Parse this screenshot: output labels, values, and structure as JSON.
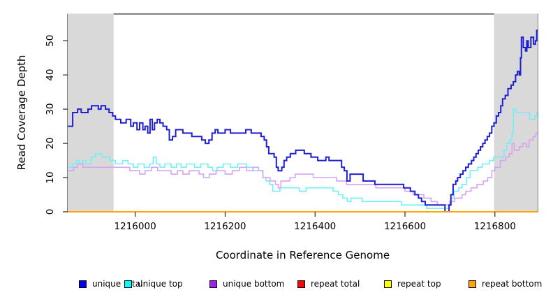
{
  "figure": {
    "background": "#ffffff",
    "plot_border_color": "#000000",
    "tick_color": "#000000",
    "tick_font_px": 13.5
  },
  "chart_data": {
    "type": "line",
    "subtype": "step-coverage",
    "title": "",
    "xlabel": "Coordinate in Reference Genome",
    "ylabel": "Read Coverage Depth",
    "xlim": [
      1215850,
      1216895
    ],
    "ylim": [
      0,
      57.8
    ],
    "x_ticks": [
      1216000,
      1216200,
      1216400,
      1216600,
      1216800
    ],
    "y_ticks": [
      0,
      10,
      20,
      30,
      40,
      50
    ],
    "grid": false,
    "legend_position": "bottom",
    "shaded_regions": [
      {
        "x0": 1215850,
        "x1": 1215952,
        "color": "#d9d9d9"
      },
      {
        "x0": 1216798,
        "x1": 1216895,
        "color": "#d9d9d9"
      }
    ],
    "series": [
      {
        "name": "unique top",
        "line_color": "#70eff5",
        "legend_color": "#00ffff",
        "width": 1.6,
        "points": [
          [
            1215850,
            13
          ],
          [
            1215861,
            14
          ],
          [
            1215868,
            15
          ],
          [
            1215875,
            14
          ],
          [
            1215883,
            15
          ],
          [
            1215890,
            14
          ],
          [
            1215902,
            16
          ],
          [
            1215912,
            17
          ],
          [
            1215926,
            16
          ],
          [
            1215944,
            15
          ],
          [
            1215956,
            14
          ],
          [
            1215972,
            15
          ],
          [
            1215984,
            14
          ],
          [
            1215996,
            13
          ],
          [
            1216006,
            14
          ],
          [
            1216020,
            13
          ],
          [
            1216032,
            14
          ],
          [
            1216040,
            16
          ],
          [
            1216047,
            14
          ],
          [
            1216055,
            13
          ],
          [
            1216066,
            14
          ],
          [
            1216080,
            13
          ],
          [
            1216092,
            14
          ],
          [
            1216102,
            13
          ],
          [
            1216114,
            14
          ],
          [
            1216132,
            13
          ],
          [
            1216146,
            14
          ],
          [
            1216162,
            13
          ],
          [
            1216172,
            12
          ],
          [
            1216182,
            13
          ],
          [
            1216196,
            14
          ],
          [
            1216212,
            13
          ],
          [
            1216228,
            14
          ],
          [
            1216248,
            13
          ],
          [
            1216262,
            12
          ],
          [
            1216284,
            10
          ],
          [
            1216291,
            9
          ],
          [
            1216299,
            8
          ],
          [
            1216306,
            6
          ],
          [
            1216322,
            7
          ],
          [
            1216365,
            6
          ],
          [
            1216380,
            7
          ],
          [
            1216440,
            6
          ],
          [
            1216452,
            5
          ],
          [
            1216462,
            4
          ],
          [
            1216472,
            3
          ],
          [
            1216480,
            4
          ],
          [
            1216505,
            3
          ],
          [
            1216592,
            2
          ],
          [
            1216648,
            1
          ],
          [
            1216698,
            2
          ],
          [
            1216703,
            4
          ],
          [
            1216709,
            6
          ],
          [
            1216719,
            7
          ],
          [
            1216727,
            8
          ],
          [
            1216737,
            10
          ],
          [
            1216745,
            12
          ],
          [
            1216762,
            13
          ],
          [
            1216772,
            14
          ],
          [
            1216788,
            15
          ],
          [
            1216797,
            16
          ],
          [
            1216820,
            18
          ],
          [
            1216826,
            20
          ],
          [
            1216833,
            21
          ],
          [
            1216838,
            23
          ],
          [
            1216841,
            30
          ],
          [
            1216847,
            29
          ],
          [
            1216877,
            27
          ],
          [
            1216889,
            28
          ],
          [
            1216893,
            29
          ]
        ]
      },
      {
        "name": "unique bottom",
        "line_color": "#d6a3f0",
        "legend_color": "#a020f0",
        "width": 1.6,
        "points": [
          [
            1215850,
            12
          ],
          [
            1215863,
            13
          ],
          [
            1215872,
            14
          ],
          [
            1215884,
            13
          ],
          [
            1215940,
            13
          ],
          [
            1215988,
            12
          ],
          [
            1216010,
            11
          ],
          [
            1216022,
            12
          ],
          [
            1216036,
            13
          ],
          [
            1216050,
            12
          ],
          [
            1216080,
            11
          ],
          [
            1216094,
            12
          ],
          [
            1216106,
            11
          ],
          [
            1216120,
            12
          ],
          [
            1216142,
            11
          ],
          [
            1216152,
            10
          ],
          [
            1216165,
            11
          ],
          [
            1216180,
            12
          ],
          [
            1216200,
            11
          ],
          [
            1216216,
            12
          ],
          [
            1216232,
            13
          ],
          [
            1216248,
            12
          ],
          [
            1216262,
            13
          ],
          [
            1216274,
            12
          ],
          [
            1216284,
            10
          ],
          [
            1216300,
            9
          ],
          [
            1216312,
            8
          ],
          [
            1216318,
            7
          ],
          [
            1216324,
            9
          ],
          [
            1216344,
            10
          ],
          [
            1216356,
            11
          ],
          [
            1216396,
            10
          ],
          [
            1216448,
            9
          ],
          [
            1216470,
            8
          ],
          [
            1216535,
            7
          ],
          [
            1216600,
            6
          ],
          [
            1216618,
            5
          ],
          [
            1216642,
            4
          ],
          [
            1216658,
            3
          ],
          [
            1216672,
            2
          ],
          [
            1216700,
            3
          ],
          [
            1216710,
            4
          ],
          [
            1216727,
            5
          ],
          [
            1216735,
            6
          ],
          [
            1216747,
            7
          ],
          [
            1216760,
            8
          ],
          [
            1216774,
            9
          ],
          [
            1216784,
            10
          ],
          [
            1216793,
            12
          ],
          [
            1216800,
            13
          ],
          [
            1216812,
            15
          ],
          [
            1216824,
            16
          ],
          [
            1216832,
            17
          ],
          [
            1216838,
            20
          ],
          [
            1216843,
            18
          ],
          [
            1216854,
            19
          ],
          [
            1216862,
            20
          ],
          [
            1216870,
            19
          ],
          [
            1216876,
            21
          ],
          [
            1216885,
            22
          ],
          [
            1216891,
            23
          ]
        ]
      },
      {
        "name": "unique total",
        "line_color": "#1f1fd0",
        "legend_color": "#0000f0",
        "width": 2,
        "points": [
          [
            1215850,
            25
          ],
          [
            1215861,
            29
          ],
          [
            1215872,
            30
          ],
          [
            1215880,
            29
          ],
          [
            1215895,
            30
          ],
          [
            1215903,
            31
          ],
          [
            1215918,
            30
          ],
          [
            1215924,
            31
          ],
          [
            1215934,
            30
          ],
          [
            1215942,
            29
          ],
          [
            1215950,
            28
          ],
          [
            1215956,
            27
          ],
          [
            1215968,
            26
          ],
          [
            1215980,
            27
          ],
          [
            1215990,
            25
          ],
          [
            1215996,
            26
          ],
          [
            1216004,
            24
          ],
          [
            1216010,
            26
          ],
          [
            1216017,
            24
          ],
          [
            1216022,
            25
          ],
          [
            1216028,
            23
          ],
          [
            1216033,
            27
          ],
          [
            1216038,
            24
          ],
          [
            1216043,
            26
          ],
          [
            1216049,
            27
          ],
          [
            1216055,
            26
          ],
          [
            1216062,
            25
          ],
          [
            1216070,
            24
          ],
          [
            1216076,
            21
          ],
          [
            1216083,
            22
          ],
          [
            1216090,
            24
          ],
          [
            1216106,
            23
          ],
          [
            1216126,
            22
          ],
          [
            1216148,
            21
          ],
          [
            1216156,
            20
          ],
          [
            1216164,
            21
          ],
          [
            1216171,
            23
          ],
          [
            1216178,
            24
          ],
          [
            1216184,
            23
          ],
          [
            1216200,
            24
          ],
          [
            1216212,
            23
          ],
          [
            1216246,
            24
          ],
          [
            1216258,
            23
          ],
          [
            1216280,
            22
          ],
          [
            1216287,
            21
          ],
          [
            1216292,
            19
          ],
          [
            1216297,
            17
          ],
          [
            1216309,
            16
          ],
          [
            1216314,
            13
          ],
          [
            1216318,
            12
          ],
          [
            1216326,
            13
          ],
          [
            1216331,
            15
          ],
          [
            1216337,
            16
          ],
          [
            1216345,
            17
          ],
          [
            1216357,
            18
          ],
          [
            1216376,
            17
          ],
          [
            1216391,
            16
          ],
          [
            1216406,
            15
          ],
          [
            1216424,
            16
          ],
          [
            1216431,
            15
          ],
          [
            1216459,
            13
          ],
          [
            1216465,
            12
          ],
          [
            1216471,
            9
          ],
          [
            1216478,
            11
          ],
          [
            1216507,
            9
          ],
          [
            1216533,
            8
          ],
          [
            1216597,
            7
          ],
          [
            1216612,
            6
          ],
          [
            1216622,
            5
          ],
          [
            1216630,
            4
          ],
          [
            1216637,
            3
          ],
          [
            1216645,
            2
          ],
          [
            1216689,
            0
          ],
          [
            1216698,
            2
          ],
          [
            1216702,
            5
          ],
          [
            1216707,
            8
          ],
          [
            1216713,
            9
          ],
          [
            1216717,
            10
          ],
          [
            1216723,
            11
          ],
          [
            1216729,
            12
          ],
          [
            1216735,
            13
          ],
          [
            1216741,
            14
          ],
          [
            1216748,
            15
          ],
          [
            1216753,
            16
          ],
          [
            1216758,
            17
          ],
          [
            1216763,
            18
          ],
          [
            1216768,
            19
          ],
          [
            1216773,
            20
          ],
          [
            1216778,
            21
          ],
          [
            1216783,
            22
          ],
          [
            1216788,
            23
          ],
          [
            1216793,
            25
          ],
          [
            1216798,
            26
          ],
          [
            1216803,
            28
          ],
          [
            1216808,
            29
          ],
          [
            1216813,
            31
          ],
          [
            1216817,
            33
          ],
          [
            1216823,
            34
          ],
          [
            1216829,
            36
          ],
          [
            1216836,
            37
          ],
          [
            1216841,
            38
          ],
          [
            1216846,
            40
          ],
          [
            1216850,
            41
          ],
          [
            1216854,
            40
          ],
          [
            1216857,
            45
          ],
          [
            1216859,
            51
          ],
          [
            1216863,
            48
          ],
          [
            1216868,
            47
          ],
          [
            1216871,
            50
          ],
          [
            1216874,
            48
          ],
          [
            1216880,
            51
          ],
          [
            1216886,
            49
          ],
          [
            1216890,
            50
          ],
          [
            1216893,
            53
          ]
        ]
      },
      {
        "name": "repeat total",
        "line_color": "#ff0000",
        "legend_color": "#ff0000",
        "width": 1.6,
        "points": [
          [
            1215850,
            0
          ]
        ]
      },
      {
        "name": "repeat top",
        "line_color": "#ffff00",
        "legend_color": "#ffff00",
        "width": 1.6,
        "points": [
          [
            1215850,
            0
          ]
        ]
      },
      {
        "name": "repeat bottom",
        "line_color": "#ffa500",
        "legend_color": "#ffa500",
        "width": 1.8,
        "points": [
          [
            1215850,
            0
          ]
        ]
      }
    ],
    "legend_order": [
      "unique total",
      "unique top",
      "unique bottom",
      "repeat total",
      "repeat top",
      "repeat bottom"
    ]
  }
}
